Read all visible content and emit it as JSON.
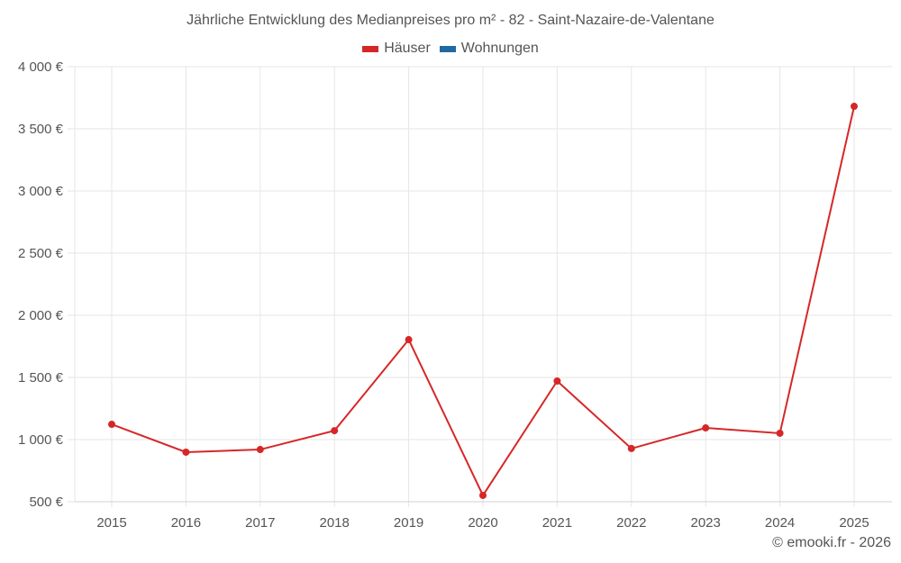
{
  "header": {
    "title": "Jährliche Entwicklung des Medianpreises pro m² - 82 - Saint-Nazaire-de-Valentane"
  },
  "legend": {
    "items": [
      {
        "label": "Häuser",
        "color": "#d62728"
      },
      {
        "label": "Wohnungen",
        "color": "#1f6aa5"
      }
    ]
  },
  "footer": {
    "credit": "© emooki.fr - 2026"
  },
  "chart_data": {
    "type": "line",
    "title": "Jährliche Entwicklung des Medianpreises pro m² - 82 - Saint-Nazaire-de-Valentane",
    "xlabel": "",
    "ylabel": "",
    "categories": [
      "2015",
      "2016",
      "2017",
      "2018",
      "2019",
      "2020",
      "2021",
      "2022",
      "2023",
      "2024",
      "2025"
    ],
    "series": [
      {
        "name": "Häuser",
        "color": "#d62728",
        "values": [
          1123,
          899,
          920,
          1072,
          1804,
          551,
          1471,
          928,
          1094,
          1051,
          3681
        ]
      },
      {
        "name": "Wohnungen",
        "color": "#1f6aa5",
        "values": []
      }
    ],
    "ylim": [
      500,
      4000
    ],
    "yticks": [
      500,
      1000,
      1500,
      2000,
      2500,
      3000,
      3500,
      4000
    ],
    "ytick_labels": [
      "500 €",
      "1 000 €",
      "1 500 €",
      "2 000 €",
      "2 500 €",
      "3 000 €",
      "3 500 €",
      "4 000 €"
    ],
    "grid": true,
    "legend_position": "top"
  }
}
